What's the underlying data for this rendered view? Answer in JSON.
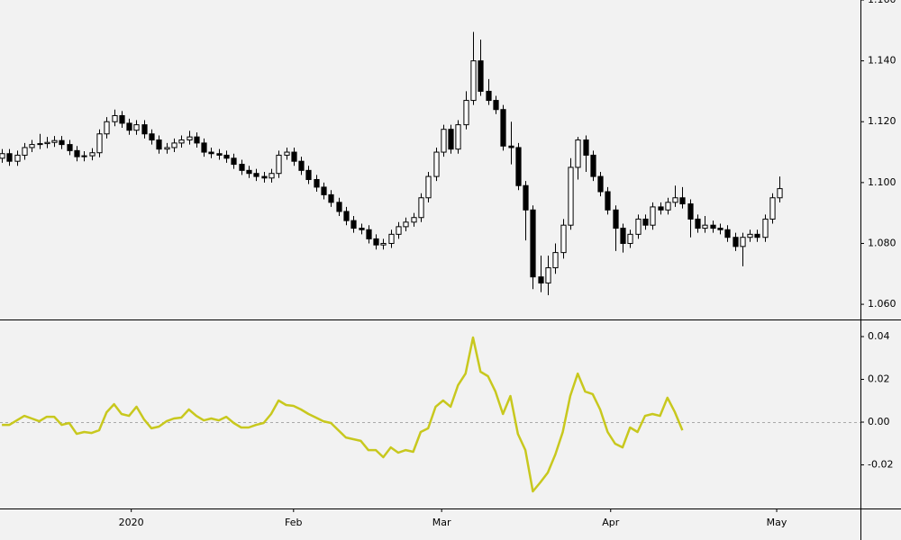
{
  "chart_data": [
    {
      "type": "candlestick",
      "xlim": [
        -0.25,
        114.8
      ],
      "ylim": [
        1.055,
        1.16
      ],
      "yticks": [
        {
          "value": 1.06,
          "label": "1.060"
        },
        {
          "value": 1.08,
          "label": "1.080"
        },
        {
          "value": 1.1,
          "label": "1.100"
        },
        {
          "value": 1.12,
          "label": "1.120"
        },
        {
          "value": 1.14,
          "label": "1.140"
        },
        {
          "value": 1.16,
          "label": "1.160"
        }
      ],
      "series": [
        {
          "up_color": "#ffffff",
          "down_color": "#000000",
          "values": [
            [
              1.108,
              1.111,
              1.1065,
              1.1095
            ],
            [
              1.1095,
              1.111,
              1.1055,
              1.107
            ],
            [
              1.107,
              1.1105,
              1.1055,
              1.109
            ],
            [
              1.109,
              1.113,
              1.1075,
              1.1115
            ],
            [
              1.1115,
              1.114,
              1.11,
              1.1125
            ],
            [
              1.1125,
              1.116,
              1.111,
              1.1128
            ],
            [
              1.1128,
              1.115,
              1.1113,
              1.1132
            ],
            [
              1.1132,
              1.1153,
              1.1117,
              1.1138
            ],
            [
              1.1138,
              1.1153,
              1.111,
              1.1125
            ],
            [
              1.1125,
              1.114,
              1.109,
              1.1105
            ],
            [
              1.1105,
              1.112,
              1.107,
              1.1085
            ],
            [
              1.1085,
              1.1103,
              1.107,
              1.1088
            ],
            [
              1.1088,
              1.1113,
              1.1073,
              1.1098
            ],
            [
              1.1098,
              1.1175,
              1.1083,
              1.116
            ],
            [
              1.116,
              1.1215,
              1.1145,
              1.12
            ],
            [
              1.12,
              1.124,
              1.1185,
              1.122
            ],
            [
              1.122,
              1.1235,
              1.118,
              1.1195
            ],
            [
              1.1195,
              1.121,
              1.1157,
              1.1172
            ],
            [
              1.1172,
              1.1205,
              1.1157,
              1.119
            ],
            [
              1.119,
              1.1205,
              1.1145,
              1.116
            ],
            [
              1.116,
              1.1175,
              1.1125,
              1.114
            ],
            [
              1.114,
              1.1155,
              1.1095,
              1.111
            ],
            [
              1.111,
              1.113,
              1.1095,
              1.1115
            ],
            [
              1.1115,
              1.1145,
              1.11,
              1.113
            ],
            [
              1.113,
              1.1155,
              1.1115,
              1.114
            ],
            [
              1.114,
              1.117,
              1.1125,
              1.115
            ],
            [
              1.115,
              1.1165,
              1.1115,
              1.113
            ],
            [
              1.113,
              1.1145,
              1.1085,
              1.11
            ],
            [
              1.11,
              1.1115,
              1.108,
              1.1095
            ],
            [
              1.1095,
              1.111,
              1.1075,
              1.109
            ],
            [
              1.109,
              1.1105,
              1.1065,
              1.108
            ],
            [
              1.108,
              1.1095,
              1.1045,
              1.106
            ],
            [
              1.106,
              1.1075,
              1.1025,
              1.104
            ],
            [
              1.104,
              1.1055,
              1.1015,
              1.103
            ],
            [
              1.103,
              1.1045,
              1.1005,
              1.102
            ],
            [
              1.102,
              1.1035,
              1.1,
              1.1015
            ],
            [
              1.1015,
              1.1045,
              1.1,
              1.103
            ],
            [
              1.103,
              1.1105,
              1.1015,
              1.109
            ],
            [
              1.109,
              1.1115,
              1.1075,
              1.11
            ],
            [
              1.11,
              1.1115,
              1.1055,
              1.107
            ],
            [
              1.107,
              1.1085,
              1.1025,
              1.104
            ],
            [
              1.104,
              1.1055,
              1.0995,
              1.101
            ],
            [
              1.101,
              1.1025,
              1.097,
              1.0985
            ],
            [
              1.0985,
              1.1,
              1.0945,
              1.096
            ],
            [
              1.096,
              1.0975,
              1.092,
              1.0935
            ],
            [
              1.0935,
              1.095,
              1.089,
              1.0905
            ],
            [
              1.0905,
              1.092,
              1.086,
              1.0875
            ],
            [
              1.0875,
              1.089,
              1.0835,
              1.085
            ],
            [
              1.085,
              1.0865,
              1.083,
              1.0845
            ],
            [
              1.0845,
              1.086,
              1.08,
              1.0815
            ],
            [
              1.0815,
              1.083,
              1.078,
              1.0795
            ],
            [
              1.0795,
              1.0815,
              1.078,
              1.08
            ],
            [
              1.08,
              1.0845,
              1.0785,
              1.083
            ],
            [
              1.083,
              1.087,
              1.0815,
              1.0855
            ],
            [
              1.0855,
              1.0885,
              1.084,
              1.087
            ],
            [
              1.087,
              1.09,
              1.0855,
              1.0885
            ],
            [
              1.0885,
              1.0965,
              1.087,
              1.095
            ],
            [
              1.095,
              1.1035,
              1.0935,
              1.102
            ],
            [
              1.102,
              1.1115,
              1.1005,
              1.11
            ],
            [
              1.11,
              1.119,
              1.1085,
              1.1175
            ],
            [
              1.1175,
              1.119,
              1.1095,
              1.111
            ],
            [
              1.111,
              1.1205,
              1.1095,
              1.119
            ],
            [
              1.119,
              1.13,
              1.1175,
              1.127
            ],
            [
              1.127,
              1.1495,
              1.1255,
              1.14
            ],
            [
              1.14,
              1.147,
              1.1285,
              1.13
            ],
            [
              1.13,
              1.134,
              1.1255,
              1.127
            ],
            [
              1.127,
              1.1285,
              1.1225,
              1.124
            ],
            [
              1.124,
              1.1255,
              1.1105,
              1.112
            ],
            [
              1.112,
              1.12,
              1.106,
              1.1115
            ],
            [
              1.1115,
              1.113,
              1.0975,
              1.099
            ],
            [
              1.099,
              1.1005,
              1.081,
              1.091
            ],
            [
              1.091,
              1.0925,
              1.065,
              1.069
            ],
            [
              1.069,
              1.076,
              1.064,
              1.067
            ],
            [
              1.067,
              1.076,
              1.063,
              1.072
            ],
            [
              1.072,
              1.08,
              1.07,
              1.077
            ],
            [
              1.077,
              1.088,
              1.075,
              1.086
            ],
            [
              1.086,
              1.108,
              1.0845,
              1.105
            ],
            [
              1.105,
              1.115,
              1.101,
              1.114
            ],
            [
              1.114,
              1.1155,
              1.1035,
              1.109
            ],
            [
              1.109,
              1.1105,
              1.1005,
              1.102
            ],
            [
              1.102,
              1.1035,
              1.0955,
              1.097
            ],
            [
              1.097,
              1.0985,
              1.0895,
              1.091
            ],
            [
              1.091,
              1.0925,
              1.0775,
              1.085
            ],
            [
              1.085,
              1.0865,
              1.077,
              1.08
            ],
            [
              1.08,
              1.0845,
              1.0785,
              1.083
            ],
            [
              1.083,
              1.0895,
              1.0815,
              1.088
            ],
            [
              1.088,
              1.0895,
              1.0845,
              1.086
            ],
            [
              1.086,
              1.0935,
              1.0845,
              1.092
            ],
            [
              1.092,
              1.0935,
              1.0895,
              1.091
            ],
            [
              1.091,
              1.095,
              1.0895,
              1.0935
            ],
            [
              1.0935,
              1.099,
              1.092,
              1.095
            ],
            [
              1.095,
              1.0985,
              1.0915,
              1.093
            ],
            [
              1.093,
              1.0945,
              1.082,
              1.088
            ],
            [
              1.088,
              1.0895,
              1.0835,
              1.085
            ],
            [
              1.085,
              1.089,
              1.0835,
              1.086
            ],
            [
              1.086,
              1.0875,
              1.0835,
              1.085
            ],
            [
              1.085,
              1.0865,
              1.083,
              1.0845
            ],
            [
              1.0845,
              1.086,
              1.0805,
              1.082
            ],
            [
              1.082,
              1.0835,
              1.0775,
              1.079
            ],
            [
              1.079,
              1.0835,
              1.0725,
              1.082
            ],
            [
              1.082,
              1.0845,
              1.0805,
              1.083
            ],
            [
              1.083,
              1.0845,
              1.0805,
              1.082
            ],
            [
              1.082,
              1.0895,
              1.0805,
              1.088
            ],
            [
              1.088,
              1.0965,
              1.0865,
              1.095
            ],
            [
              1.095,
              1.102,
              1.0935,
              1.098
            ]
          ]
        }
      ]
    },
    {
      "type": "line",
      "xlim": [
        -0.25,
        114.8
      ],
      "xticks": [
        {
          "value": 17.3,
          "label": "2020"
        },
        {
          "value": 39,
          "label": "Feb"
        },
        {
          "value": 58.8,
          "label": "Mar"
        },
        {
          "value": 81.4,
          "label": "Apr"
        },
        {
          "value": 103.6,
          "label": "May"
        }
      ],
      "ylim": [
        -0.0404,
        0.048
      ],
      "yticks": [
        {
          "value": -0.02,
          "label": "-0.02"
        },
        {
          "value": 0,
          "label": "0.00"
        },
        {
          "value": 0.02,
          "label": "0.02"
        },
        {
          "value": 0.04,
          "label": "0.04"
        }
      ],
      "zero_line": true,
      "series": [
        {
          "color": "#c8c81e",
          "values": [
            -0.0013,
            -0.0013,
            0.0008,
            0.0029,
            0.0017,
            0.0004,
            0.0025,
            0.0025,
            -0.0013,
            -0.0004,
            -0.0055,
            -0.0046,
            -0.0051,
            -0.0038,
            0.0046,
            0.0084,
            0.0038,
            0.0029,
            0.0072,
            0.0013,
            -0.0029,
            -0.0021,
            0.0004,
            0.0017,
            0.0021,
            0.0059,
            0.0029,
            0.0008,
            0.0017,
            0.0008,
            0.0025,
            -0.0004,
            -0.0025,
            -0.0025,
            -0.0013,
            -0.0004,
            0.0038,
            0.0101,
            0.008,
            0.0076,
            0.0059,
            0.0038,
            0.0021,
            0.0004,
            -0.0004,
            -0.0038,
            -0.0072,
            -0.008,
            -0.0088,
            -0.0131,
            -0.0131,
            -0.0164,
            -0.0118,
            -0.0143,
            -0.0131,
            -0.0139,
            -0.0046,
            -0.0029,
            0.0072,
            0.0101,
            0.0072,
            0.0173,
            0.0227,
            0.0396,
            0.0236,
            0.0215,
            0.0143,
            0.0038,
            0.0122,
            -0.0055,
            -0.0131,
            -0.0324,
            -0.0282,
            -0.0236,
            -0.0152,
            -0.0046,
            0.0122,
            0.0227,
            0.0143,
            0.0131,
            0.0059,
            -0.0046,
            -0.0101,
            -0.0118,
            -0.0025,
            -0.0046,
            0.0029,
            0.0038,
            0.0029,
            0.0114,
            0.0046,
            -0.0038,
            null,
            null,
            null,
            null,
            null,
            null,
            null,
            null,
            null,
            null,
            null,
            null,
            null
          ]
        }
      ]
    }
  ]
}
